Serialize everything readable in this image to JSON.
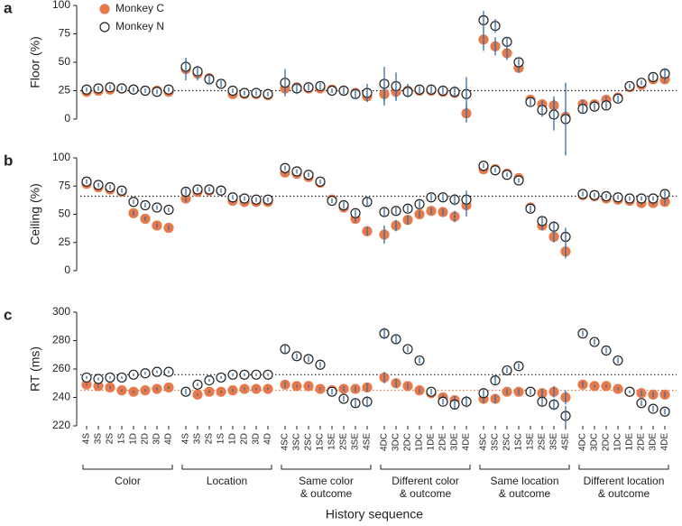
{
  "chart_data": [
    {
      "type": "scatter",
      "panel": "a",
      "y_label": "Floor (%)",
      "ylim": [
        0,
        100
      ],
      "yticks": [
        0,
        25,
        50,
        75,
        100
      ],
      "legend": "upper left",
      "errorbar_color": "#2f6ea6",
      "reference_lines": [
        {
          "value": 25,
          "color": "#222222"
        }
      ],
      "series": [
        {
          "name": "Monkey C",
          "color": "#e8794a",
          "edgecolor": "#e8794a",
          "values": [
            24,
            25,
            26,
            27,
            26,
            25,
            25,
            24,
            44,
            40,
            36,
            31,
            22,
            22,
            22,
            21,
            27,
            28,
            27,
            27,
            26,
            25,
            23,
            20,
            22,
            24,
            25,
            25,
            25,
            24,
            23,
            5,
            70,
            64,
            58,
            45,
            17,
            13,
            12,
            2,
            13,
            13,
            17,
            19,
            28,
            30,
            35,
            35
          ],
          "errors": [
            2,
            2,
            2,
            2,
            2,
            2,
            2,
            2,
            10,
            6,
            4,
            3,
            2,
            2,
            2,
            2,
            3,
            3,
            2,
            2,
            2,
            2,
            3,
            4,
            10,
            8,
            6,
            4,
            3,
            3,
            4,
            8,
            10,
            8,
            6,
            4,
            2,
            3,
            8,
            6,
            4,
            3,
            3,
            3,
            2,
            2,
            3,
            3
          ]
        },
        {
          "name": "Monkey N",
          "color": "#ffffff",
          "edgecolor": "#222222",
          "values": [
            26,
            27,
            28,
            27,
            26,
            25,
            24,
            26,
            46,
            42,
            35,
            31,
            25,
            23,
            23,
            22,
            32,
            27,
            28,
            29,
            25,
            25,
            22,
            23,
            31,
            29,
            24,
            26,
            26,
            25,
            24,
            22,
            87,
            82,
            68,
            50,
            15,
            8,
            4,
            0,
            9,
            11,
            12,
            18,
            29,
            32,
            37,
            40
          ],
          "errors": [
            2,
            2,
            2,
            2,
            2,
            2,
            2,
            2,
            6,
            5,
            4,
            3,
            2,
            2,
            2,
            2,
            12,
            5,
            3,
            3,
            2,
            3,
            4,
            8,
            15,
            12,
            5,
            3,
            3,
            3,
            5,
            15,
            8,
            6,
            4,
            3,
            3,
            6,
            14,
            32,
            4,
            3,
            3,
            3,
            2,
            2,
            3,
            5
          ]
        }
      ]
    },
    {
      "type": "scatter",
      "panel": "b",
      "y_label": "Ceiling (%)",
      "ylim": [
        0,
        100
      ],
      "yticks": [
        0,
        25,
        50,
        75,
        100
      ],
      "errorbar_color": "#2f6ea6",
      "reference_lines": [
        {
          "value": 66,
          "color": "#222222"
        }
      ],
      "series": [
        {
          "color": "#e8794a",
          "edgecolor": "#e8794a",
          "values": [
            77,
            74,
            72,
            70,
            51,
            46,
            40,
            38,
            64,
            70,
            71,
            71,
            62,
            61,
            61,
            61,
            87,
            86,
            83,
            78,
            63,
            56,
            46,
            35,
            32,
            40,
            45,
            50,
            53,
            52,
            48,
            58,
            90,
            90,
            86,
            82,
            56,
            40,
            30,
            17,
            67,
            66,
            64,
            63,
            62,
            60,
            60,
            61
          ],
          "errors": [
            2,
            2,
            2,
            2,
            2,
            2,
            2,
            2,
            3,
            2,
            2,
            2,
            2,
            2,
            2,
            2,
            2,
            2,
            2,
            2,
            2,
            3,
            3,
            4,
            8,
            5,
            4,
            3,
            3,
            3,
            5,
            10,
            2,
            2,
            2,
            2,
            3,
            4,
            5,
            6,
            2,
            2,
            2,
            2,
            2,
            2,
            2,
            3
          ]
        },
        {
          "color": "#ffffff",
          "edgecolor": "#222222",
          "values": [
            79,
            76,
            74,
            71,
            61,
            58,
            56,
            54,
            70,
            72,
            72,
            71,
            65,
            64,
            63,
            63,
            91,
            88,
            85,
            79,
            62,
            58,
            51,
            61,
            52,
            53,
            55,
            59,
            65,
            65,
            63,
            63,
            93,
            89,
            85,
            80,
            55,
            44,
            39,
            30,
            68,
            67,
            66,
            65,
            64,
            64,
            64,
            68
          ],
          "errors": [
            2,
            2,
            2,
            2,
            2,
            2,
            2,
            2,
            3,
            2,
            2,
            2,
            2,
            2,
            2,
            2,
            2,
            2,
            2,
            2,
            2,
            3,
            3,
            4,
            4,
            3,
            3,
            3,
            3,
            3,
            5,
            8,
            2,
            2,
            2,
            2,
            3,
            4,
            5,
            8,
            2,
            2,
            2,
            2,
            2,
            2,
            2,
            3
          ]
        }
      ]
    },
    {
      "type": "scatter",
      "panel": "c",
      "y_label": "RT (ms)",
      "ylim": [
        220,
        300
      ],
      "yticks": [
        220,
        240,
        260,
        280,
        300
      ],
      "errorbar_color": "#2f6ea6",
      "x_label": "History sequence",
      "reference_lines": [
        {
          "value": 256,
          "color": "#222222"
        },
        {
          "value": 245,
          "color": "#e8794a"
        }
      ],
      "groups": [
        {
          "label": [
            "Color"
          ],
          "categories": [
            "4S",
            "3S",
            "2S",
            "1S",
            "1D",
            "2D",
            "3D",
            "4D"
          ]
        },
        {
          "label": [
            "Location"
          ],
          "categories": [
            "4S",
            "3S",
            "2S",
            "1S",
            "1D",
            "2D",
            "3D",
            "4D"
          ]
        },
        {
          "label": [
            "Same color",
            "& outcome"
          ],
          "categories": [
            "4SC",
            "3SC",
            "2SC",
            "1SC",
            "1SE",
            "2SE",
            "3SE",
            "4SE"
          ]
        },
        {
          "label": [
            "Different color",
            "& outcome"
          ],
          "categories": [
            "4DC",
            "3DC",
            "2DC",
            "1DC",
            "1DE",
            "2DE",
            "3DE",
            "4DE"
          ]
        },
        {
          "label": [
            "Same location",
            "& outcome"
          ],
          "categories": [
            "4SC",
            "3SC",
            "2SC",
            "1SC",
            "1SE",
            "2SE",
            "3SE",
            "4SE"
          ]
        },
        {
          "label": [
            "Different location",
            "& outcome"
          ],
          "categories": [
            "4DC",
            "3DC",
            "2DC",
            "1DC",
            "1DE",
            "2DE",
            "3DE",
            "4DE"
          ]
        }
      ],
      "series": [
        {
          "color": "#e8794a",
          "edgecolor": "#e8794a",
          "values": [
            249,
            248,
            247,
            245,
            244,
            245,
            246,
            247,
            244,
            242,
            244,
            244,
            245,
            246,
            246,
            246,
            249,
            248,
            248,
            246,
            245,
            246,
            246,
            247,
            254,
            250,
            248,
            245,
            243,
            240,
            238,
            237,
            239,
            239,
            244,
            244,
            244,
            243,
            244,
            240,
            249,
            248,
            248,
            246,
            244,
            243,
            242,
            242
          ],
          "errors": [
            1,
            1,
            1,
            1,
            1,
            1,
            1,
            1,
            1,
            1,
            1,
            1,
            1,
            1,
            1,
            1,
            2,
            1,
            1,
            1,
            1,
            2,
            2,
            3,
            4,
            3,
            2,
            2,
            2,
            2,
            3,
            4,
            3,
            3,
            2,
            2,
            2,
            3,
            4,
            5,
            2,
            1,
            1,
            1,
            1,
            2,
            2,
            2
          ]
        },
        {
          "color": "#ffffff",
          "edgecolor": "#222222",
          "values": [
            254,
            253,
            254,
            254,
            256,
            257,
            258,
            258,
            244,
            249,
            252,
            254,
            256,
            256,
            256,
            256,
            274,
            269,
            267,
            263,
            244,
            239,
            236,
            237,
            285,
            281,
            274,
            266,
            244,
            237,
            235,
            237,
            243,
            252,
            259,
            262,
            244,
            237,
            235,
            227,
            285,
            279,
            273,
            266,
            244,
            236,
            232,
            230
          ],
          "errors": [
            1,
            1,
            1,
            1,
            1,
            1,
            1,
            1,
            2,
            1,
            1,
            1,
            1,
            1,
            1,
            1,
            3,
            2,
            2,
            2,
            2,
            2,
            3,
            4,
            4,
            3,
            2,
            2,
            2,
            2,
            3,
            4,
            3,
            3,
            2,
            2,
            2,
            3,
            4,
            7,
            2,
            2,
            2,
            2,
            1,
            2,
            2,
            2
          ]
        }
      ]
    }
  ]
}
